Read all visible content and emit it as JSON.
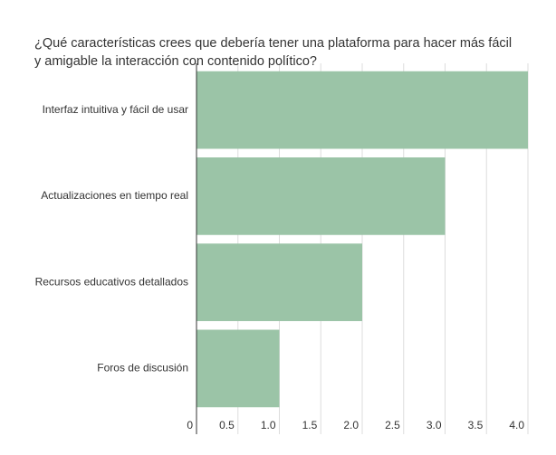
{
  "chart_data": {
    "type": "hbar",
    "title": "¿Qué características crees que debería tener una plataforma para hacer más fácil y amigable la interacción con contenido político?",
    "categories": [
      "Interfaz intuitiva y fácil de usar",
      "Actualizaciones en tiempo real",
      "Recursos educativos detallados",
      "Foros de discusión"
    ],
    "values": [
      4,
      3,
      2,
      1
    ],
    "color": "#9bc4a7",
    "xlim": [
      0,
      4
    ],
    "xticks": [
      0,
      0.5,
      {
        "value": 1,
        "label": "1.0"
      },
      1.5,
      {
        "value": 2,
        "label": "2.0"
      },
      2.5,
      {
        "value": 3,
        "label": "3.0"
      },
      3.5,
      {
        "value": 4,
        "label": "4.0"
      }
    ],
    "grid": true
  }
}
